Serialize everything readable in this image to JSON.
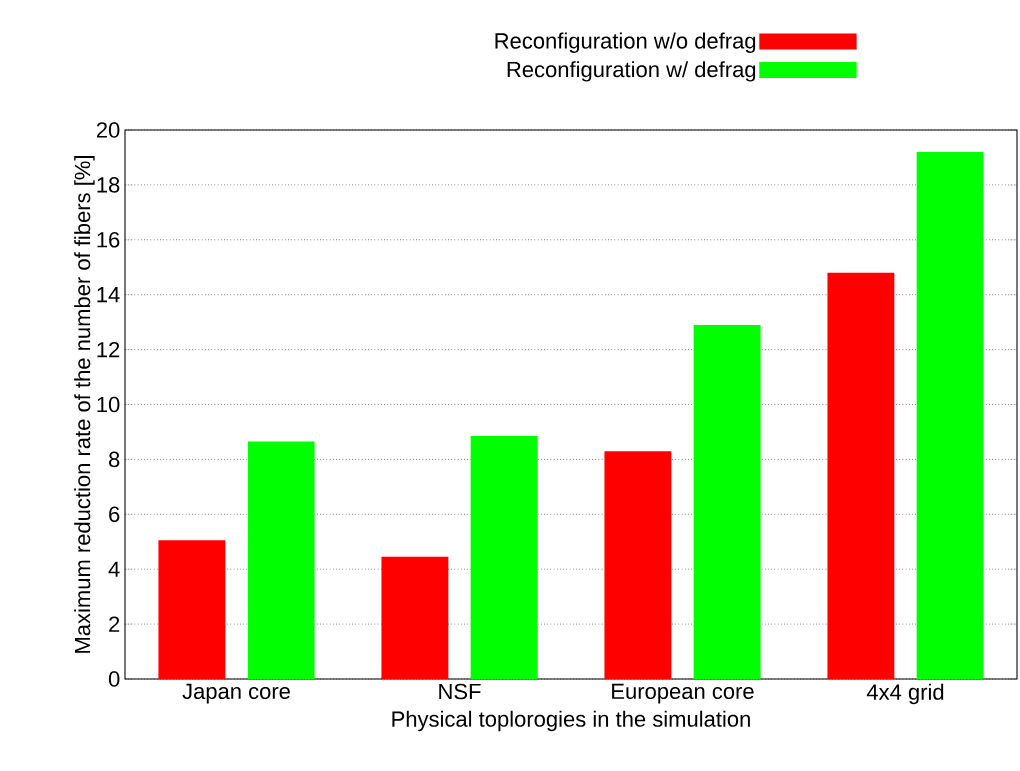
{
  "chart_data": {
    "type": "bar",
    "xlabel": "Physical toplorogies in the simulation",
    "ylabel": "Maximum reduction rate of the number of fibers [%]",
    "categories": [
      "Japan core",
      "NSF",
      "European core",
      "4x4 grid"
    ],
    "series": [
      {
        "name": "Reconfiguration w/o defrag",
        "color": "#ff0000",
        "values": [
          5.05,
          4.45,
          8.3,
          14.8
        ]
      },
      {
        "name": "Reconfiguration w/ defrag",
        "color": "#00ff00",
        "values": [
          8.65,
          8.85,
          12.9,
          19.2
        ]
      }
    ],
    "ylim": [
      0,
      20
    ],
    "yticks": [
      0,
      2,
      4,
      6,
      8,
      10,
      12,
      14,
      16,
      18,
      20
    ],
    "grid": "y",
    "legend": "top right"
  }
}
